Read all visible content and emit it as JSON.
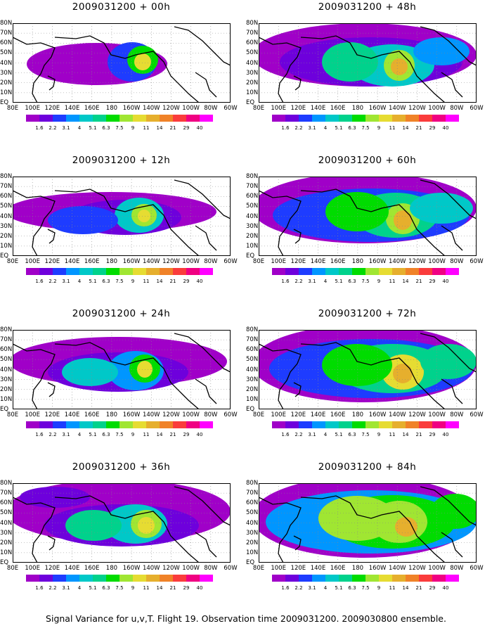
{
  "caption": "Signal Variance for u,v,T. Flight 19. Observation time 2009031200. 2009030800 ensemble.",
  "lat_labels": [
    "80N",
    "70N",
    "60N",
    "50N",
    "40N",
    "30N",
    "20N",
    "10N",
    "EQ"
  ],
  "lon_labels": [
    "80E",
    "100E",
    "120E",
    "140E",
    "160E",
    "180",
    "160W",
    "140W",
    "120W",
    "100W",
    "80W",
    "60W"
  ],
  "colorbar": {
    "labels": [
      "1.6",
      "2.2",
      "3.1",
      "4",
      "5.1",
      "6.3",
      "7.5",
      "9",
      "11",
      "14",
      "21",
      "29",
      "40"
    ],
    "colors": [
      "#a000c8",
      "#6e00dc",
      "#1e3cff",
      "#0096ff",
      "#00c8c8",
      "#00d28c",
      "#00dc00",
      "#a0e632",
      "#e6dc32",
      "#e6af2d",
      "#f08228",
      "#fa3c3c",
      "#f00082",
      "#ff00ff"
    ]
  },
  "panels": [
    {
      "title": "2009031200 + 00h"
    },
    {
      "title": "2009031200 + 12h"
    },
    {
      "title": "2009031200 + 24h"
    },
    {
      "title": "2009031200 + 36h"
    },
    {
      "title": "2009031200 + 48h"
    },
    {
      "title": "2009031200 + 60h"
    },
    {
      "title": "2009031200 + 72h"
    },
    {
      "title": "2009031200 + 84h"
    }
  ]
}
